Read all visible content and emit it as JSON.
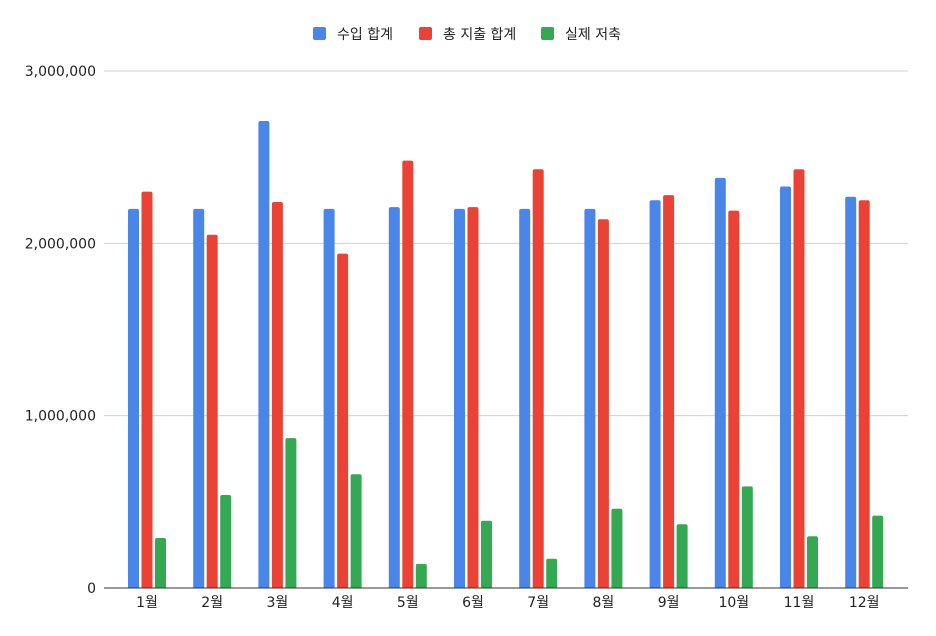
{
  "chart_data": {
    "type": "bar",
    "title": "",
    "xlabel": "",
    "ylabel": "",
    "categories": [
      "1월",
      "2월",
      "3월",
      "4월",
      "5월",
      "6월",
      "7월",
      "8월",
      "9월",
      "10월",
      "11월",
      "12월"
    ],
    "series": [
      {
        "name": "수입 합계",
        "color": "#4a86e8",
        "values": [
          2200000,
          2200000,
          2710000,
          2200000,
          2210000,
          2200000,
          2200000,
          2200000,
          2250000,
          2380000,
          2330000,
          2270000
        ]
      },
      {
        "name": "총 지출 합계",
        "color": "#ea4335",
        "values": [
          2300000,
          2050000,
          2240000,
          1940000,
          2480000,
          2210000,
          2430000,
          2140000,
          2280000,
          2190000,
          2430000,
          2250000
        ]
      },
      {
        "name": "실제 저축",
        "color": "#34a853",
        "values": [
          290000,
          540000,
          870000,
          660000,
          140000,
          390000,
          170000,
          460000,
          370000,
          590000,
          300000,
          420000
        ]
      }
    ],
    "ylim": [
      0,
      3000000
    ],
    "yticks": [
      0,
      1000000,
      2000000,
      3000000
    ],
    "ytick_labels": [
      "0",
      "1,000,000",
      "2,000,000",
      "3,000,000"
    ],
    "grid": true,
    "legend_position": "top-center"
  }
}
